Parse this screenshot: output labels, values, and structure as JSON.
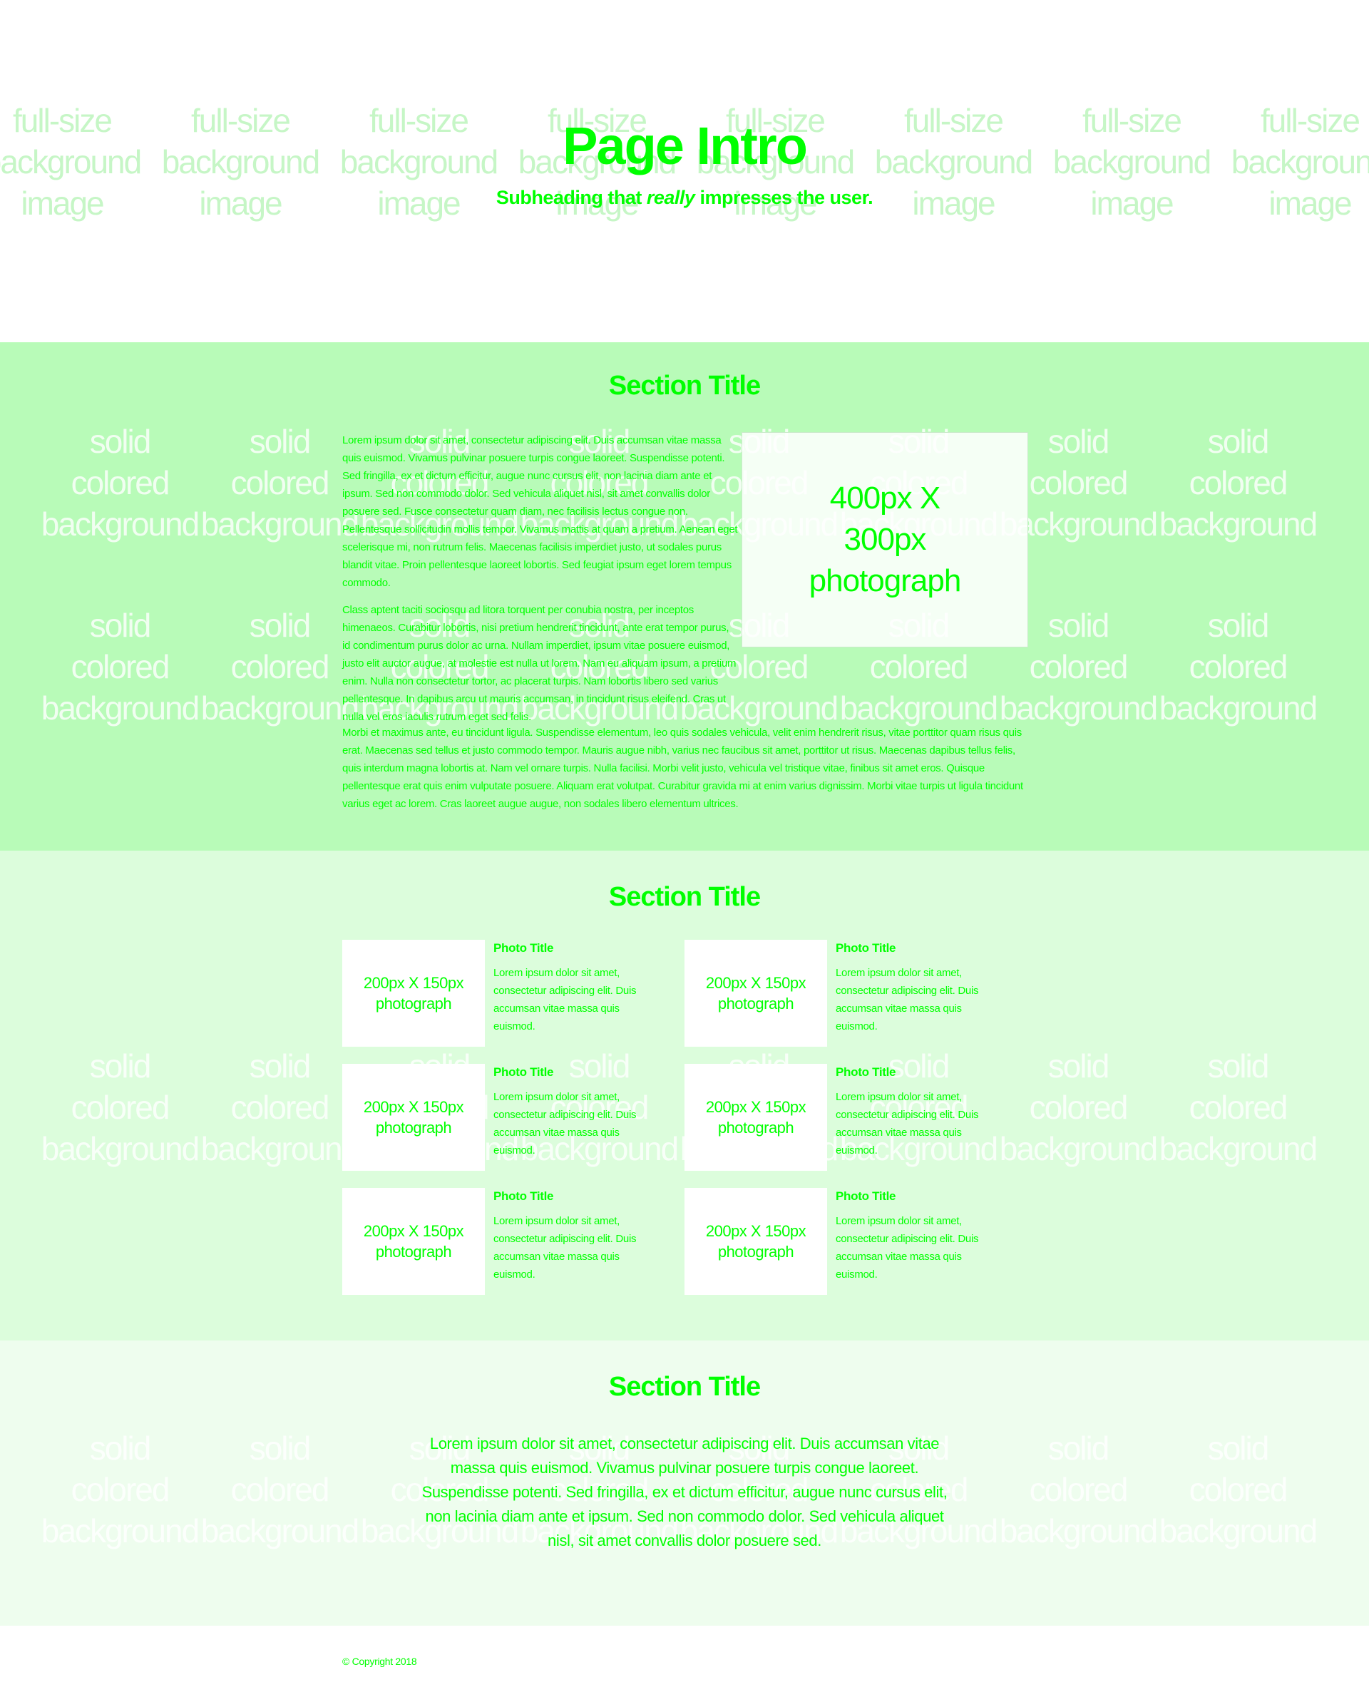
{
  "colors": {
    "accent": "#00ff00",
    "section1_bg": "#b8fbb8",
    "section2_bg": "#dcfddc",
    "section3_bg": "#eefdee",
    "hero_bg": "#ffffff"
  },
  "watermarks": {
    "hero": [
      "full-size",
      "background",
      "image"
    ],
    "solid": [
      "solid",
      "colored",
      "background"
    ]
  },
  "hero": {
    "title": "Page Intro",
    "subtitle_before": "Subheading that ",
    "subtitle_emphasis": "really",
    "subtitle_after": " impresses the user."
  },
  "section1": {
    "title": "Section Title",
    "paragraph1": "Lorem ipsum dolor sit amet, consectetur adipiscing elit. Duis accumsan vitae massa quis euismod. Vivamus pulvinar posuere turpis congue laoreet. Suspendisse potenti. Sed fringilla, ex et dictum efficitur, augue nunc cursus elit, non lacinia diam ante et ipsum. Sed non commodo dolor. Sed vehicula aliquet nisl, sit amet convallis dolor posuere sed. Fusce consectetur quam diam, nec facilisis lectus congue non. Pellentesque sollicitudin mollis tempor. Vivamus mattis at quam a pretium. Aenean eget scelerisque mi, non rutrum felis. Maecenas facilisis imperdiet justo, ut sodales purus blandit vitae. Proin pellentesque laoreet lobortis. Sed feugiat ipsum eget lorem tempus commodo.",
    "paragraph2": "Class aptent taciti sociosqu ad litora torquent per conubia nostra, per inceptos himenaeos. Curabitur lobortis, nisi pretium hendrerit tincidunt, ante erat tempor purus, id condimentum purus dolor ac urna. Nullam imperdiet, ipsum vitae posuere euismod, justo elit auctor augue, at molestie est nulla ut lorem. Nam eu aliquam ipsum, a pretium enim. Nulla non consectetur tortor, ac placerat turpis. Nam lobortis libero sed varius pellentesque. In dapibus arcu ut mauris accumsan, in tincidunt risus eleifend. Cras ut nulla vel eros iaculis rutrum eget sed felis.",
    "paragraph3": "Morbi et maximus ante, eu tincidunt ligula. Suspendisse elementum, leo quis sodales vehicula, velit enim hendrerit risus, vitae porttitor quam risus quis erat. Maecenas sed tellus et justo commodo tempor. Mauris augue nibh, varius nec faucibus sit amet, porttitor ut risus. Maecenas dapibus tellus felis, quis interdum magna lobortis at. Nam vel ornare turpis. Nulla facilisi. Morbi velit justo, vehicula vel tristique vitae, finibus sit amet eros. Quisque pellentesque erat quis enim vulputate posuere. Aliquam erat volutpat. Curabitur gravida mi at enim varius dignissim. Morbi vitae turpis ut ligula tincidunt varius eget ac lorem. Cras laoreet augue augue, non sodales libero elementum ultrices.",
    "photo_label": "400px X 300px photograph"
  },
  "section2": {
    "title": "Section Title",
    "cards": [
      {
        "thumb": "200px X 150px photograph",
        "title": "Photo Title",
        "text": "Lorem ipsum dolor sit amet, consectetur adipiscing elit. Duis accumsan vitae massa quis euismod."
      },
      {
        "thumb": "200px X 150px photograph",
        "title": "Photo Title",
        "text": "Lorem ipsum dolor sit amet, consectetur adipiscing elit. Duis accumsan vitae massa quis euismod."
      },
      {
        "thumb": "200px X 150px photograph",
        "title": "Photo Title",
        "text": "Lorem ipsum dolor sit amet, consectetur adipiscing elit. Duis accumsan vitae massa quis euismod."
      },
      {
        "thumb": "200px X 150px photograph",
        "title": "Photo Title",
        "text": "Lorem ipsum dolor sit amet, consectetur adipiscing elit. Duis accumsan vitae massa quis euismod."
      },
      {
        "thumb": "200px X 150px photograph",
        "title": "Photo Title",
        "text": "Lorem ipsum dolor sit amet, consectetur adipiscing elit. Duis accumsan vitae massa quis euismod."
      },
      {
        "thumb": "200px X 150px photograph",
        "title": "Photo Title",
        "text": "Lorem ipsum dolor sit amet, consectetur adipiscing elit. Duis accumsan vitae massa quis euismod."
      }
    ]
  },
  "section3": {
    "title": "Section Title",
    "text": "Lorem ipsum dolor sit amet, consectetur adipiscing elit. Duis accumsan vitae massa quis euismod. Vivamus pulvinar posuere turpis congue laoreet. Suspendisse potenti. Sed fringilla, ex et dictum efficitur, augue nunc cursus elit, non lacinia diam ante et ipsum. Sed non commodo dolor. Sed vehicula aliquet nisl, sit amet convallis dolor posuere sed."
  },
  "footer": {
    "copyright": "© Copyright 2018"
  }
}
